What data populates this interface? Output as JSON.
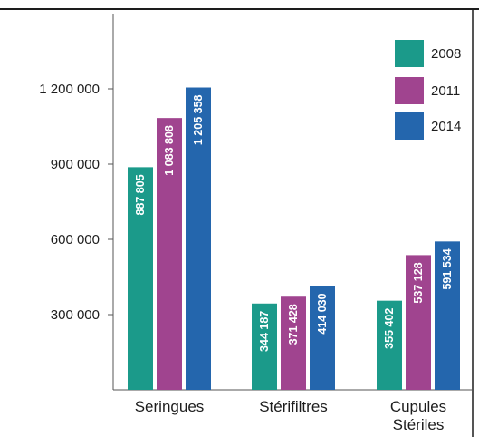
{
  "chart_data": {
    "type": "bar",
    "categories": [
      [
        "Seringues"
      ],
      [
        "Stérifiltres"
      ],
      [
        "Cupules",
        "Stériles"
      ]
    ],
    "series": [
      {
        "name": "2008",
        "color": "#1b9a8a",
        "values": [
          887805,
          344187,
          355402
        ],
        "labels": [
          "887 805",
          "344 187",
          "355 402"
        ]
      },
      {
        "name": "2011",
        "color": "#a0448f",
        "values": [
          1083808,
          371428,
          537128
        ],
        "labels": [
          "1 083 808",
          "371 428",
          "537 128"
        ]
      },
      {
        "name": "2014",
        "color": "#2466ad",
        "values": [
          1205358,
          414030,
          591534
        ],
        "labels": [
          "1 205 358",
          "414 030",
          "591 534"
        ]
      }
    ],
    "yticks": [
      300000,
      600000,
      900000,
      1200000
    ],
    "ytick_labels": [
      "300 000",
      "600 000",
      "900 000",
      "1 200 000"
    ],
    "ylim": [
      0,
      1500000
    ],
    "grid": false,
    "legend": "top-right"
  }
}
